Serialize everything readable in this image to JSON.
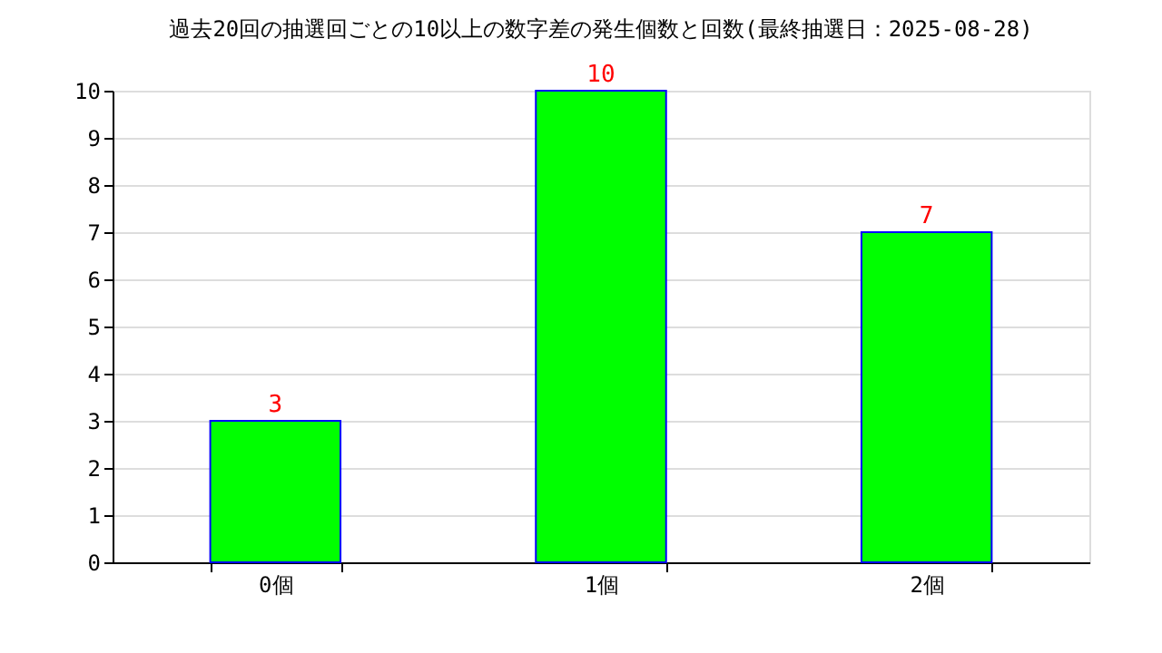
{
  "chart_data": {
    "type": "bar",
    "title": "過去20回の抽選回ごとの10以上の数字差の発生個数と回数(最終抽選日：2025-08-28)",
    "categories": [
      "0個",
      "1個",
      "2個"
    ],
    "values": [
      3,
      10,
      7
    ],
    "color": "#00ff00",
    "ylim": [
      0,
      10
    ],
    "yticks": [
      0,
      1,
      2,
      3,
      4,
      5,
      6,
      7,
      8,
      9,
      10
    ],
    "grid": "y",
    "data_labels": true
  }
}
